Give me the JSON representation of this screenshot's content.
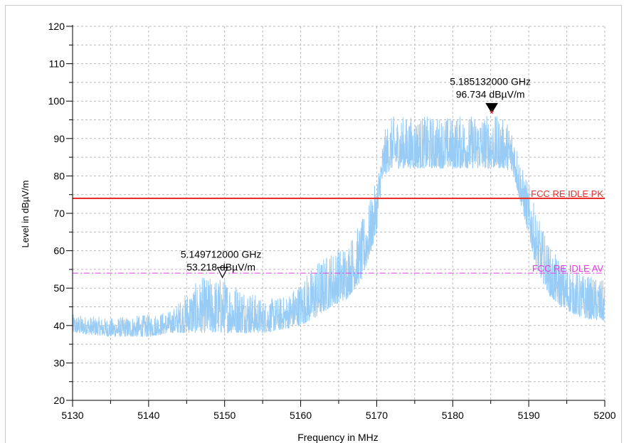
{
  "chart_data": {
    "type": "line",
    "title": "",
    "xlabel": "Frequency in MHz",
    "ylabel": "Level in dBµV/m",
    "xlim": [
      5130,
      5200
    ],
    "ylim": [
      20,
      120
    ],
    "x_ticks": [
      5130,
      5140,
      5150,
      5160,
      5170,
      5180,
      5190,
      5200
    ],
    "y_ticks": [
      20,
      30,
      40,
      50,
      60,
      70,
      80,
      90,
      100,
      110,
      120
    ],
    "grid": true,
    "colors": {
      "trace": "#99ccf5",
      "pk_limit": "#e8302c",
      "av_limit": "#e637e6",
      "grid": "#b8b8b8",
      "marker1": "#000000",
      "marker_point": "#e8302c"
    },
    "series": [
      {
        "name": "",
        "style": "noisy-trace",
        "x": [
          5130,
          5135,
          5140,
          5143,
          5145,
          5147,
          5150,
          5153,
          5155,
          5158,
          5160,
          5162,
          5164,
          5166,
          5168,
          5169,
          5170,
          5170.5,
          5171,
          5172,
          5175,
          5180,
          5185,
          5187,
          5188,
          5189,
          5190,
          5191,
          5193,
          5195,
          5197,
          5200
        ],
        "peak": [
          43,
          42,
          43,
          44,
          49,
          53,
          53,
          50,
          47,
          48,
          52,
          57,
          60,
          62,
          68,
          73,
          79,
          86,
          92,
          96,
          96,
          96,
          96.7,
          95,
          93,
          83,
          78,
          70,
          60,
          56,
          54,
          52
        ],
        "low": [
          38,
          37,
          37,
          38,
          38,
          38,
          38,
          38,
          38,
          39,
          40,
          42,
          45,
          47,
          52,
          58,
          65,
          75,
          80,
          82,
          82,
          82,
          82,
          82,
          80,
          72,
          64,
          55,
          47,
          44,
          42,
          41
        ]
      }
    ],
    "limit_lines": [
      {
        "name": "FCC RE IDLE PK",
        "y": 74.0,
        "style": "solid"
      },
      {
        "name": "FCC RE IDLE AV",
        "y": 54.0,
        "style": "dash-dot"
      }
    ],
    "markers": [
      {
        "freq_label": "5.185132000 GHz",
        "level_label": "96.734 dBµV/m",
        "x": 5185.132,
        "y": 96.734,
        "style": "filled"
      },
      {
        "freq_label": "5.149712000 GHz",
        "level_label": "53.218 dBµV/m",
        "x": 5149.712,
        "y": 53.218,
        "style": "hollow"
      }
    ]
  }
}
